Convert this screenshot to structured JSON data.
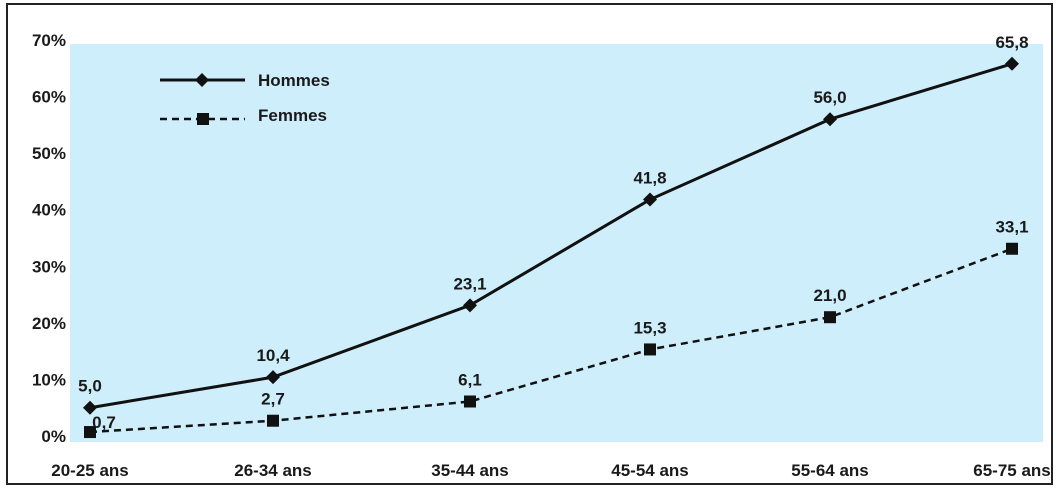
{
  "chart_data": {
    "type": "line",
    "categories": [
      "20-25 ans",
      "26-34 ans",
      "35-44 ans",
      "45-54 ans",
      "55-64 ans",
      "65-75 ans"
    ],
    "yticks": [
      "0%",
      "10%",
      "20%",
      "30%",
      "40%",
      "50%",
      "60%",
      "70%"
    ],
    "ylim": [
      0,
      70
    ],
    "grid": false,
    "legend_position": "top-left",
    "background_color": "#cdeefa",
    "series": [
      {
        "name": "Hommes",
        "values": [
          5.0,
          10.4,
          23.1,
          41.8,
          56.0,
          65.8
        ],
        "labels": [
          "5,0",
          "10,4",
          "23,1",
          "41,8",
          "56,0",
          "65,8"
        ],
        "line_style": "solid",
        "marker": "diamond",
        "color": "#111111"
      },
      {
        "name": "Femmes",
        "values": [
          0.7,
          2.7,
          6.1,
          15.3,
          21.0,
          33.1
        ],
        "labels": [
          "0,7",
          "2,7",
          "6,1",
          "15,3",
          "21,0",
          "33,1"
        ],
        "line_style": "dashed",
        "marker": "square",
        "color": "#111111"
      }
    ]
  }
}
